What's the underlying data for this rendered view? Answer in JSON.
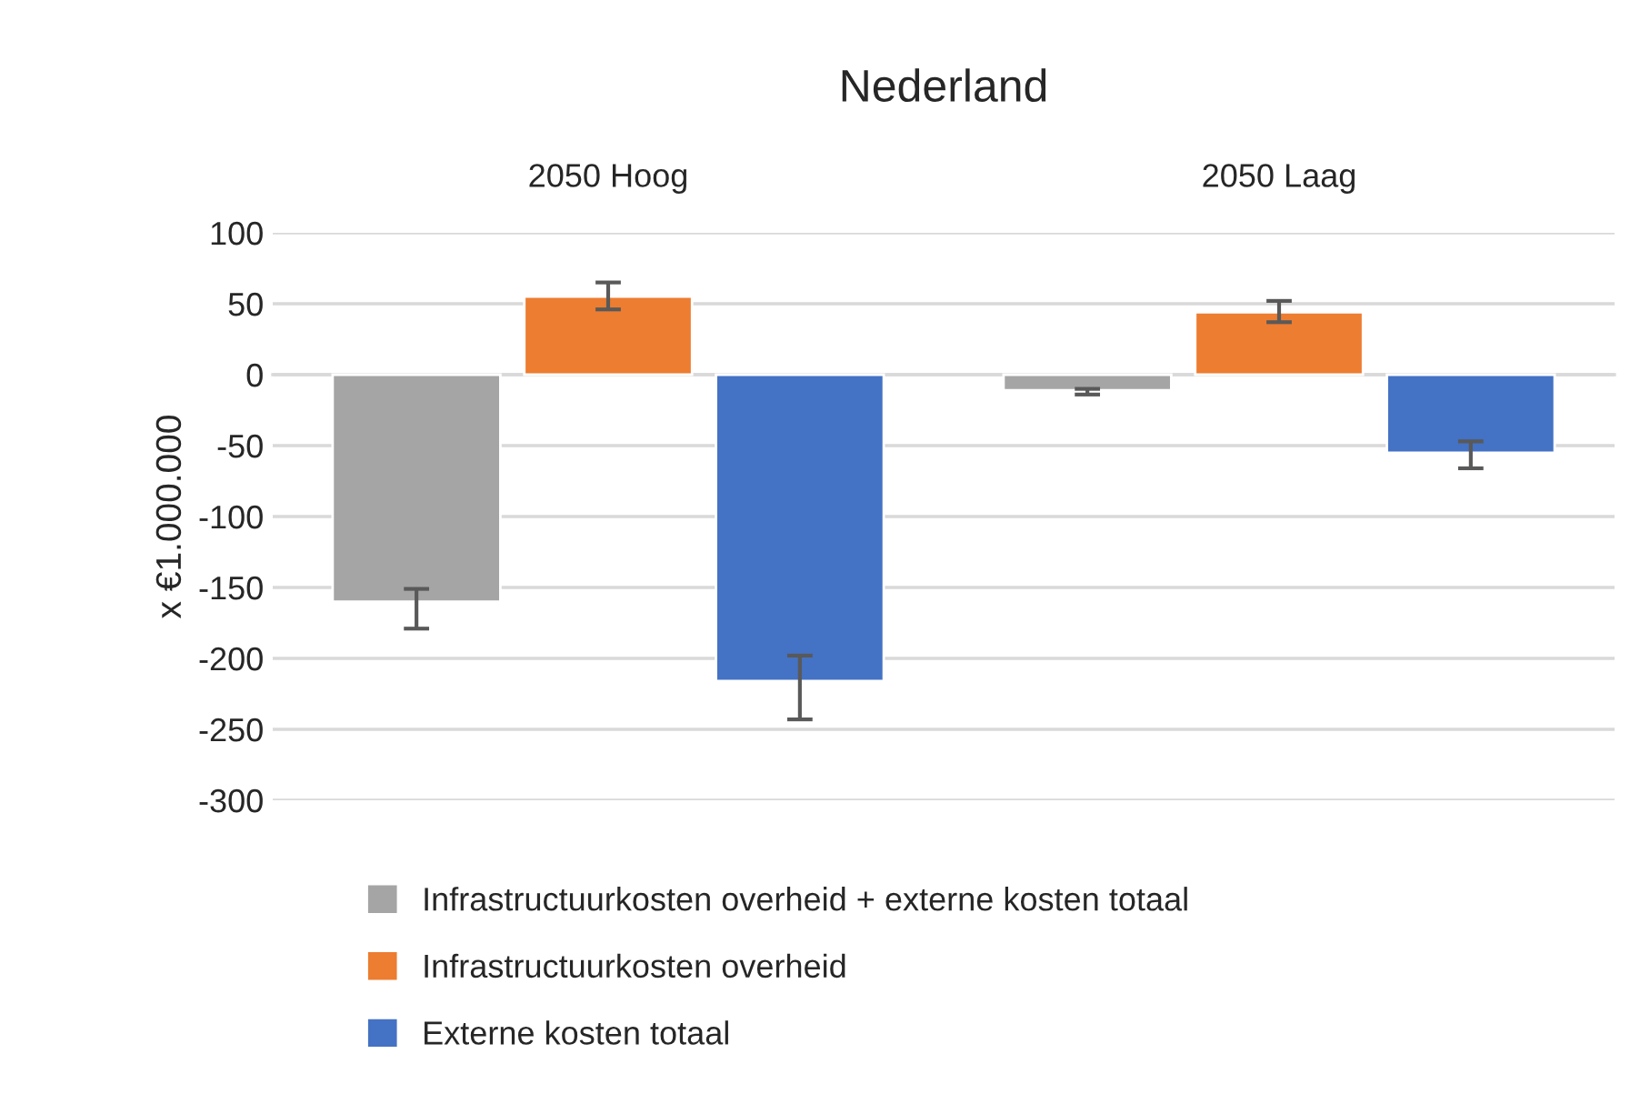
{
  "chart_data": {
    "type": "bar",
    "title": "Nederland",
    "ylabel": "x €1.000.000",
    "categories": [
      "2050 Hoog",
      "2050 Laag"
    ],
    "series": [
      {
        "name": "Infrastructuurkosten overheid + externe kosten totaal",
        "color": "#a5a5a5",
        "values": [
          -160,
          -11
        ],
        "errors": [
          [
            -179,
            -151
          ],
          [
            -14,
            -10
          ]
        ]
      },
      {
        "name": "Infrastructuurkosten overheid",
        "color": "#ed7d31",
        "values": [
          55,
          44
        ],
        "errors": [
          [
            46,
            65
          ],
          [
            37,
            52
          ]
        ]
      },
      {
        "name": "Externe kosten totaal",
        "color": "#4472c4",
        "values": [
          -216,
          -55
        ],
        "errors": [
          [
            -243,
            -198
          ],
          [
            -66,
            -47
          ]
        ]
      }
    ],
    "ylim": [
      -300,
      100
    ],
    "yticks": [
      -300,
      -250,
      -200,
      -150,
      -100,
      -50,
      0,
      50,
      100
    ],
    "grid": "y",
    "legend": "bottom"
  }
}
